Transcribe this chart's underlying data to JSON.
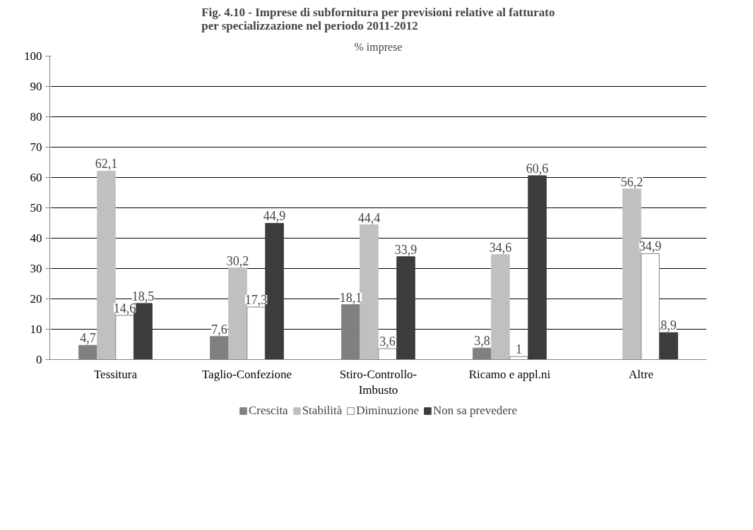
{
  "chart_data": {
    "type": "bar",
    "title": "Fig. 4.10 - Imprese di subfornitura per previsioni relative al fatturato\nper specializzazione nel periodo 2011-2012",
    "subtitle": "% imprese",
    "categories": [
      "Tessitura",
      "Taglio-Confezione",
      "Stiro-Controllo-Imbusto",
      "Ricamo e appl.ni",
      "Altre"
    ],
    "series": [
      {
        "name": "Crescita",
        "color": "#808080",
        "values": [
          4.7,
          7.6,
          18.1,
          3.8,
          null
        ],
        "value_labels": [
          "4,7",
          "7,6",
          "18,1",
          "3,8",
          null
        ]
      },
      {
        "name": "Stabilità",
        "color": "#c0c0c0",
        "values": [
          62.1,
          30.2,
          44.4,
          34.6,
          56.2
        ],
        "value_labels": [
          "62,1",
          "30,2",
          "44,4",
          "34,6",
          "56,2"
        ]
      },
      {
        "name": "Diminuzione",
        "color": "#ffffff",
        "values": [
          14.6,
          17.3,
          3.6,
          1,
          34.9
        ],
        "value_labels": [
          "14,6",
          "17,3",
          "3,6",
          "1",
          "34,9"
        ]
      },
      {
        "name": "Non sa prevedere",
        "color": "#3c3c3c",
        "values": [
          18.5,
          44.9,
          33.9,
          60.6,
          8.9
        ],
        "value_labels": [
          "18,5",
          "44,9",
          "33,9",
          "60,6",
          "8,9"
        ]
      }
    ],
    "ylim": [
      0,
      100
    ],
    "yticks": [
      0,
      10,
      20,
      30,
      40,
      50,
      60,
      70,
      80,
      90,
      100
    ],
    "grid": "y",
    "legend": "bottom"
  }
}
